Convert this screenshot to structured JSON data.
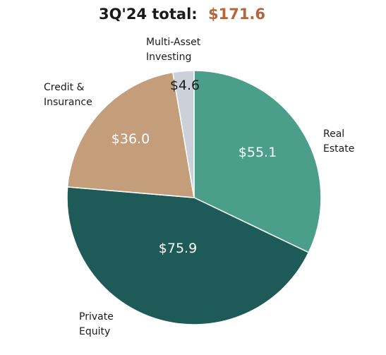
{
  "chart_data": {
    "type": "pie",
    "title_prefix": "3Q'24 total:",
    "title_total": "$171.6",
    "start": "12 o'clock",
    "direction": "clockwise",
    "slices": [
      {
        "name": "Real Estate",
        "name_lines": [
          "Real",
          "Estate"
        ],
        "value": 55.1,
        "value_label": "$55.1",
        "color": "#4a9e8a",
        "label_color": "#ffffff"
      },
      {
        "name": "Private Equity",
        "name_lines": [
          "Private",
          "Equity"
        ],
        "value": 75.9,
        "value_label": "$75.9",
        "color": "#1e5a57",
        "label_color": "#ffffff"
      },
      {
        "name": "Credit & Insurance",
        "name_lines": [
          "Credit &",
          "Insurance"
        ],
        "value": 36.0,
        "value_label": "$36.0",
        "color": "#c49e7b",
        "label_color": "#ffffff"
      },
      {
        "name": "Multi-Asset Investing",
        "name_lines": [
          "Multi-Asset",
          "Investing"
        ],
        "value": 4.6,
        "value_label": "$4.6",
        "color": "#ccd0d8",
        "label_color": "#1a1a1a"
      }
    ],
    "colors": {
      "title": "#1a1a1a",
      "total": "#b5653a"
    }
  }
}
